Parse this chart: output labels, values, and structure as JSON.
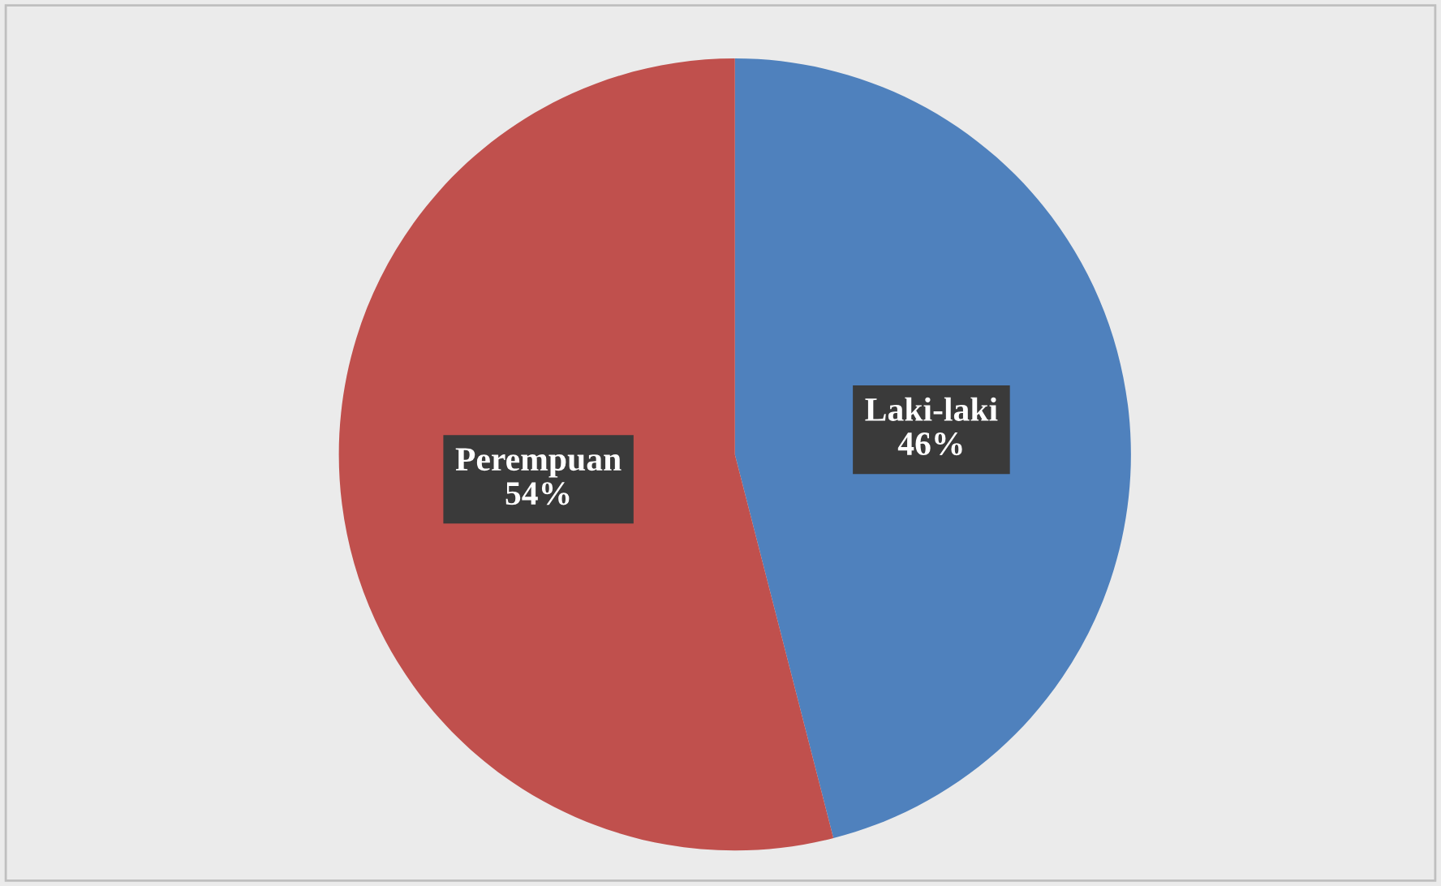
{
  "chart_data": {
    "type": "pie",
    "categories": [
      "Laki-laki",
      "Perempuan"
    ],
    "values": [
      46,
      54
    ],
    "colors": [
      "#4f81bd",
      "#c0504d"
    ],
    "value_labels": [
      "46%",
      "54%"
    ],
    "legend": false
  }
}
